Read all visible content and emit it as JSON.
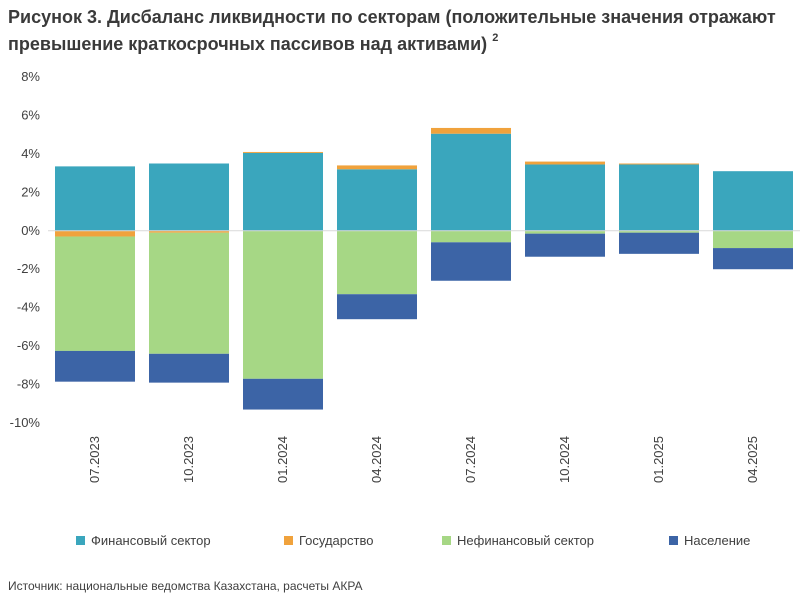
{
  "title": {
    "text": "Рисунок 3. Дисбаланс ликвидности по секторам (положительные значения отражают превышение краткосрочных пассивов над активами)",
    "footnote": "2"
  },
  "source": "Источник: национальные ведомства Казахстана, расчеты АКРА",
  "colors": {
    "finance": "#3aa6bd",
    "government": "#f0a23c",
    "nonfinance": "#a6d785",
    "households": "#3c64a6"
  },
  "chart_data": {
    "type": "bar",
    "stacked": true,
    "categories": [
      "07.2023",
      "10.2023",
      "01.2024",
      "04.2024",
      "07.2024",
      "10.2024",
      "01.2025",
      "04.2025"
    ],
    "series": [
      {
        "name": "Финансовый сектор",
        "values": [
          3.35,
          3.5,
          4.05,
          3.2,
          5.05,
          3.45,
          3.45,
          3.1
        ]
      },
      {
        "name": "Государство",
        "values": [
          -0.3,
          -0.1,
          0.05,
          0.2,
          0.3,
          0.15,
          0.05,
          0.0
        ]
      },
      {
        "name": "Нефинансовый сектор",
        "values": [
          -5.95,
          -6.3,
          -7.7,
          -3.3,
          -0.6,
          -0.15,
          -0.1,
          -0.9
        ]
      },
      {
        "name": "Население",
        "values": [
          -1.6,
          -1.5,
          -1.6,
          -1.3,
          -2.0,
          -1.2,
          -1.1,
          -1.1
        ]
      }
    ],
    "ylim": [
      -10,
      8
    ],
    "yticks": [
      "8%",
      "6%",
      "4%",
      "2%",
      "0%",
      "-2%",
      "-4%",
      "-6%",
      "-8%",
      "-10%"
    ],
    "legend": "bottom",
    "grid": false
  }
}
